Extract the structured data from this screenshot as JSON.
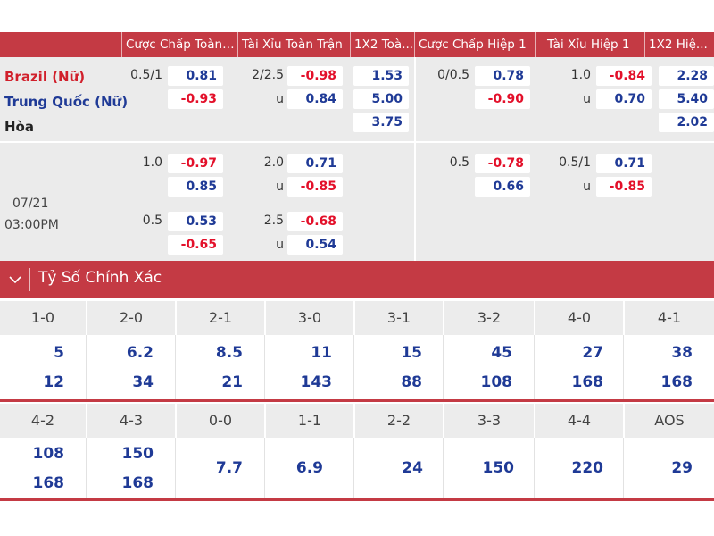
{
  "odds": {
    "headers": [
      "Cược Chấp Toàn ...",
      "Tài Xỉu Toàn Trận",
      "1X2 Toà...",
      "Cược Chấp Hiệp 1",
      "Tài Xỉu Hiệp 1",
      "1X2 Hiệ..."
    ],
    "teams": {
      "home": "Brazil (Nữ)",
      "away": "Trung Quốc (Nữ)",
      "draw": "Hòa"
    },
    "date": "07/21",
    "time": "03:00PM",
    "main": {
      "ft_hdp": {
        "line": "0.5/1",
        "home": "0.81",
        "away": "-0.93"
      },
      "ft_ou": {
        "line": "2/2.5",
        "over": "-0.98",
        "u_label": "u",
        "under": "0.84"
      },
      "ft_1x2": {
        "home": "1.53",
        "away": "5.00",
        "draw": "3.75"
      },
      "h1_hdp": {
        "line": "0/0.5",
        "home": "0.78",
        "away": "-0.90"
      },
      "h1_ou": {
        "line": "1.0",
        "over": "-0.84",
        "u_label": "u",
        "under": "0.70"
      },
      "h1_1x2": {
        "home": "2.28",
        "away": "5.40",
        "draw": "2.02"
      }
    },
    "alt1": {
      "ft_hdp": {
        "line": "1.0",
        "home": "-0.97",
        "away": "0.85"
      },
      "ft_ou": {
        "line": "2.0",
        "over": "0.71",
        "u_label": "u",
        "under": "-0.85"
      },
      "h1_hdp": {
        "line": "0.5",
        "home": "-0.78",
        "away": "0.66"
      },
      "h1_ou": {
        "line": "0.5/1",
        "over": "0.71",
        "u_label": "u",
        "under": "-0.85"
      }
    },
    "alt2": {
      "ft_hdp": {
        "line": "0.5",
        "home": "0.53",
        "away": "-0.65"
      },
      "ft_ou": {
        "line": "2.5",
        "over": "-0.68",
        "u_label": "u",
        "under": "0.54"
      }
    }
  },
  "correct_score": {
    "title": "Tỷ Số Chính Xác",
    "row1": {
      "labels": [
        "1-0",
        "2-0",
        "2-1",
        "3-0",
        "3-1",
        "3-2",
        "4-0",
        "4-1"
      ],
      "home": [
        "5",
        "6.2",
        "8.5",
        "11",
        "15",
        "45",
        "27",
        "38"
      ],
      "away": [
        "12",
        "34",
        "21",
        "143",
        "88",
        "108",
        "168",
        "168"
      ]
    },
    "row2": {
      "labels": [
        "4-2",
        "4-3",
        "0-0",
        "1-1",
        "2-2",
        "3-3",
        "4-4",
        "AOS"
      ],
      "home": [
        "108",
        "150"
      ],
      "away": [
        "168",
        "168"
      ],
      "single": [
        "7.7",
        "6.9",
        "24",
        "150",
        "220",
        "29"
      ]
    }
  },
  "colors": {
    "header_red": "#c43a44",
    "odd_red": "#e3102a",
    "odd_blue": "#1f3a96",
    "panel_grey": "#ebebeb"
  },
  "icons": {
    "section_toggle": "chevron-down-icon"
  }
}
